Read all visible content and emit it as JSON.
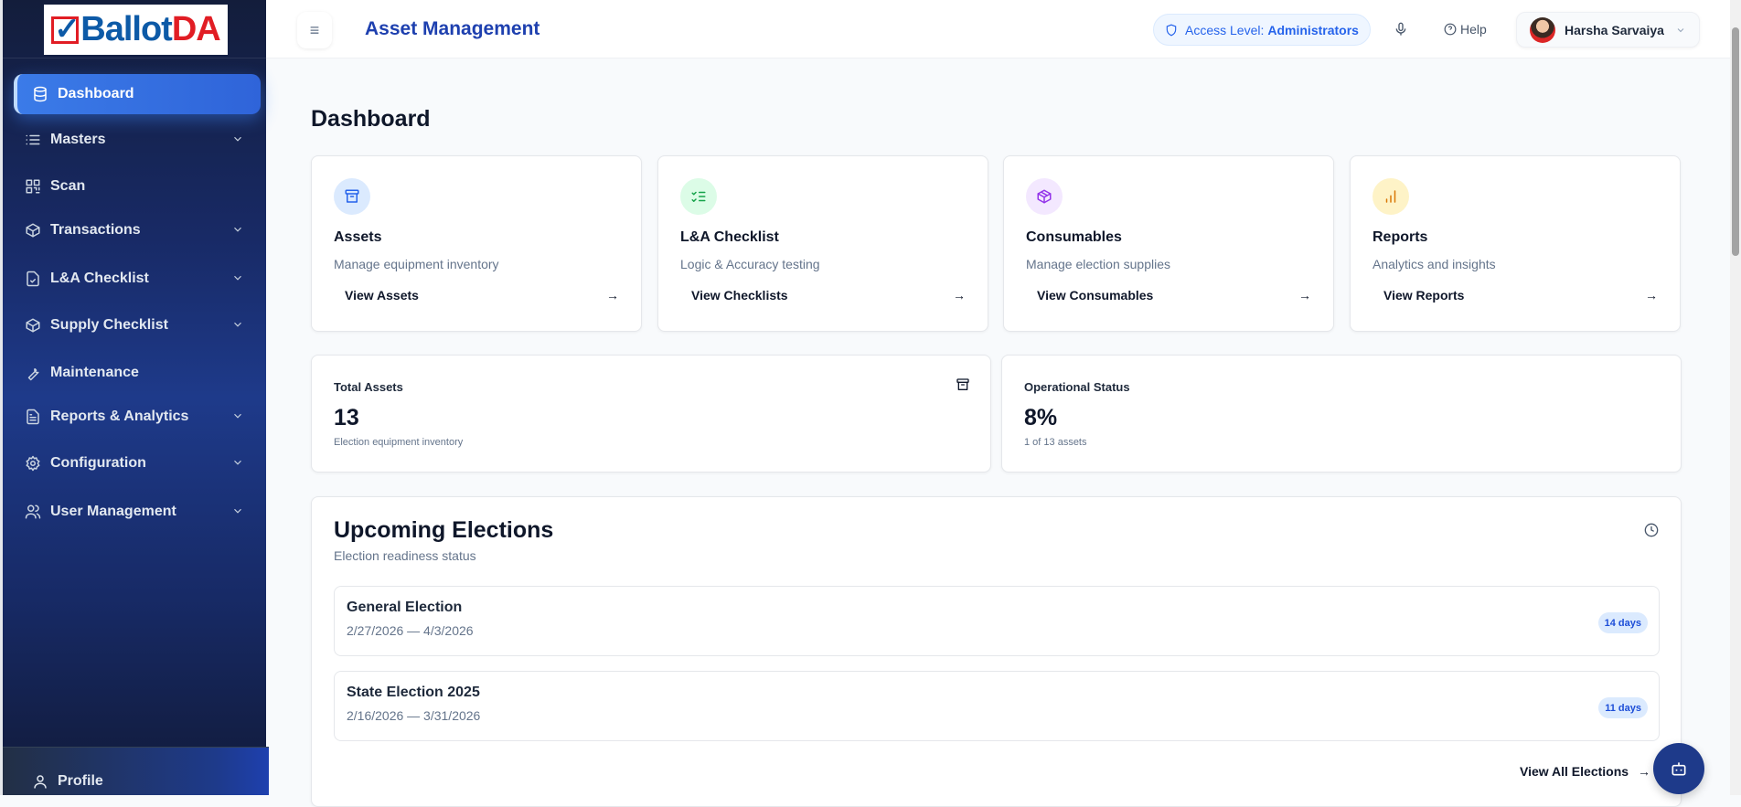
{
  "logo": {
    "text_blue": "Ballot",
    "text_red": "DA"
  },
  "sidebar": {
    "items": [
      {
        "label": "Dashboard",
        "icon": "database-icon",
        "active": true,
        "expandable": false
      },
      {
        "label": "Masters",
        "icon": "list-icon",
        "expandable": true
      },
      {
        "label": "Scan",
        "icon": "qr-code-icon",
        "expandable": false
      },
      {
        "label": "Transactions",
        "icon": "package-check-icon",
        "expandable": true
      },
      {
        "label": "L&A Checklist",
        "icon": "file-check-icon",
        "expandable": true
      },
      {
        "label": "Supply Checklist",
        "icon": "box-icon",
        "expandable": true
      },
      {
        "label": "Maintenance",
        "icon": "wrench-icon",
        "expandable": false
      },
      {
        "label": "Reports & Analytics",
        "icon": "file-text-icon",
        "expandable": true
      },
      {
        "label": "Configuration",
        "icon": "gear-icon",
        "expandable": true
      },
      {
        "label": "User Management",
        "icon": "users-icon",
        "expandable": true
      }
    ],
    "profile_label": "Profile"
  },
  "header": {
    "title": "Asset Management",
    "access_prefix": "Access Level:",
    "access_level": "Administrators",
    "help_label": "Help",
    "user_name": "Harsha Sarvaiya"
  },
  "page": {
    "title": "Dashboard"
  },
  "quick_cards": [
    {
      "title": "Assets",
      "desc": "Manage equipment inventory",
      "link": "View Assets",
      "icon": "archive-icon",
      "color": "#2563eb",
      "bg": "#dbeafe"
    },
    {
      "title": "L&A Checklist",
      "desc": "Logic & Accuracy testing",
      "link": "View Checklists",
      "icon": "list-checks-icon",
      "color": "#16a34a",
      "bg": "#dcfce7"
    },
    {
      "title": "Consumables",
      "desc": "Manage election supplies",
      "link": "View Consumables",
      "icon": "package-icon",
      "color": "#9333ea",
      "bg": "#f3e8ff"
    },
    {
      "title": "Reports",
      "desc": "Analytics and insights",
      "link": "View Reports",
      "icon": "bar-chart-icon",
      "color": "#d97706",
      "bg": "#fef3c7"
    }
  ],
  "stats": [
    {
      "label": "Total Assets",
      "value": "13",
      "sub": "Election equipment inventory"
    },
    {
      "label": "Operational Status",
      "value": "8%",
      "sub": "1 of 13 assets"
    }
  ],
  "elections": {
    "title": "Upcoming Elections",
    "subtitle": "Election readiness status",
    "items": [
      {
        "name": "General Election",
        "dates": "2/27/2026 — 4/3/2026",
        "badge": "14 days"
      },
      {
        "name": "State Election 2025",
        "dates": "2/16/2026 — 3/31/2026",
        "badge": "11 days"
      }
    ],
    "view_all": "View All Elections"
  }
}
